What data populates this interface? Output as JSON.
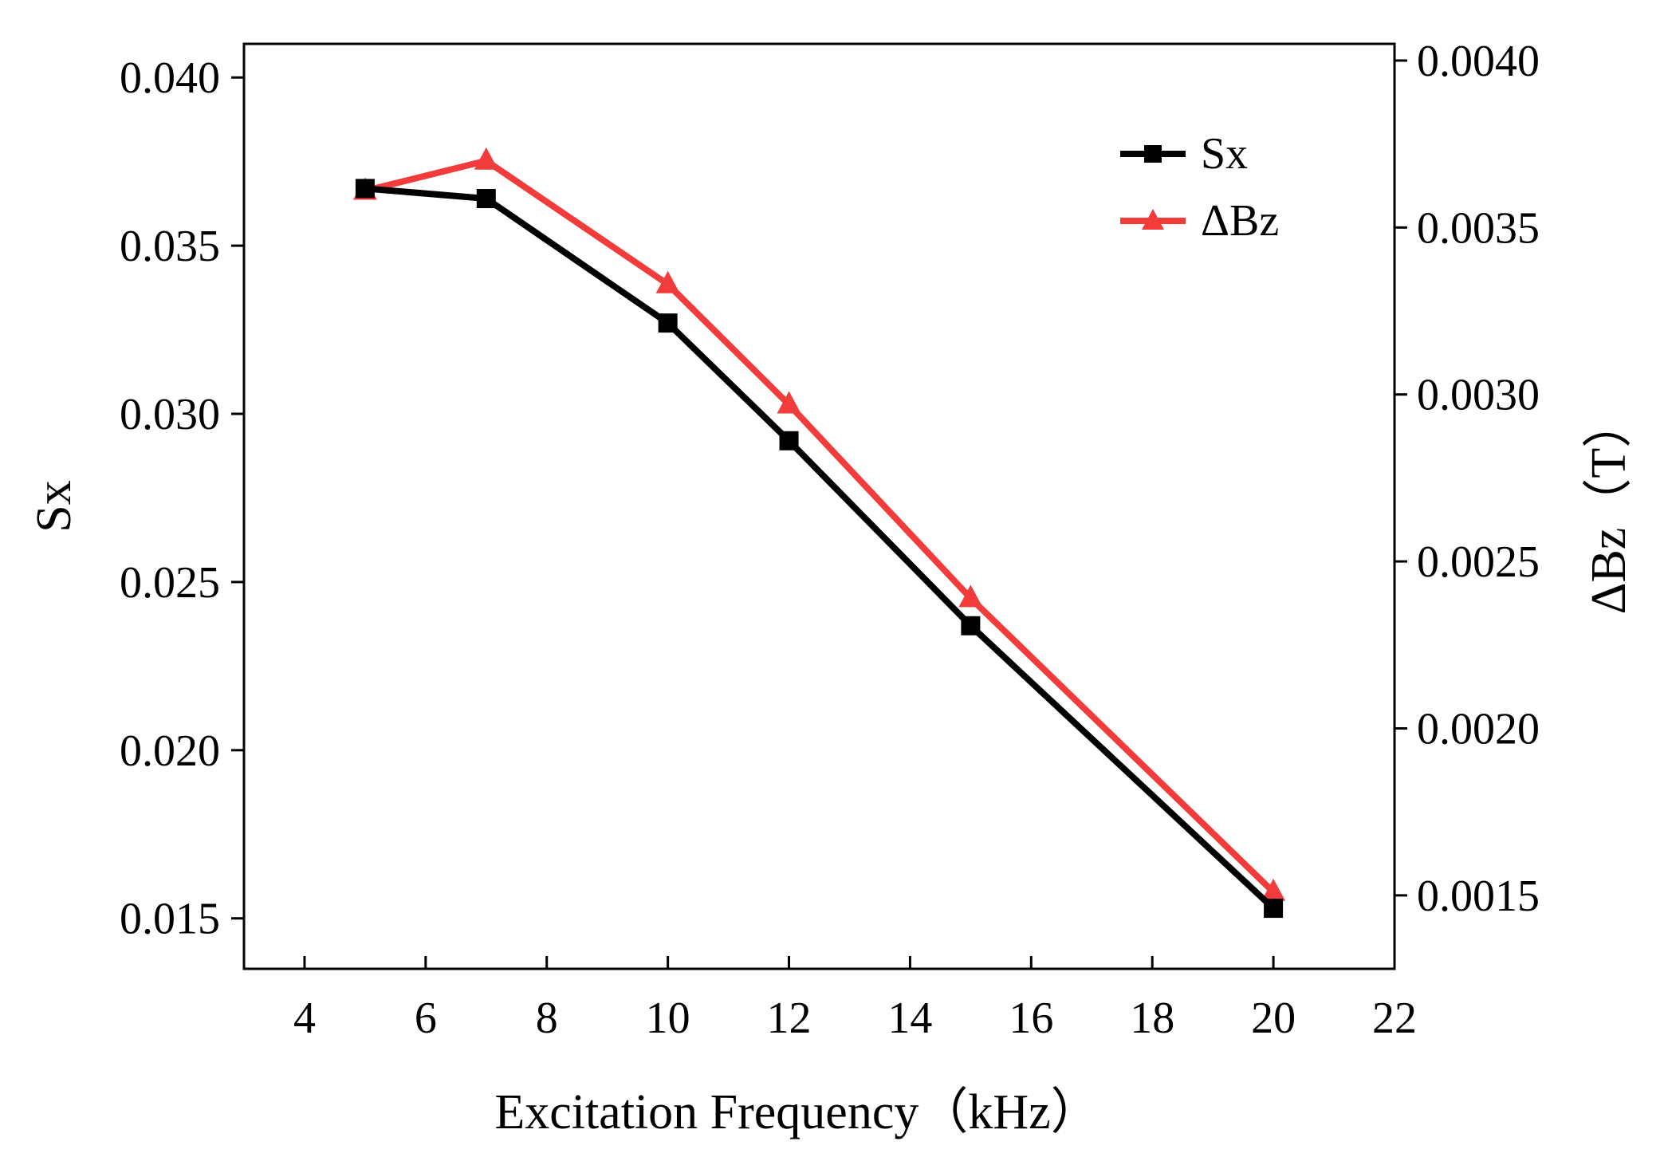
{
  "chart_data": {
    "type": "line",
    "title": "",
    "xlabel": "Excitation Frequency（kHz）",
    "ylabel": "Sx",
    "y2label": "ΔBz（T）",
    "x": [
      5,
      7,
      10,
      12,
      15,
      20
    ],
    "xlim": [
      3,
      22
    ],
    "ylim": [
      0.0135,
      0.041
    ],
    "y2lim": [
      0.00128,
      0.00405
    ],
    "xticks": [
      "4",
      "6",
      "8",
      "10",
      "12",
      "14",
      "16",
      "18",
      "20",
      "22"
    ],
    "yticks": [
      "0.015",
      "0.020",
      "0.025",
      "0.030",
      "0.035",
      "0.040"
    ],
    "y2ticks": [
      "0.0015",
      "0.0020",
      "0.0025",
      "0.0030",
      "0.0035",
      "0.0040"
    ],
    "grid": false,
    "legend_position": "top-right",
    "series": [
      {
        "name": "Sx",
        "axis": "left",
        "marker": "square",
        "color": "#000000",
        "values": [
          0.0367,
          0.0364,
          0.0327,
          0.0292,
          0.0237,
          0.0153
        ]
      },
      {
        "name": "ΔBz",
        "axis": "right",
        "marker": "triangle",
        "color": "#f23b3b",
        "values": [
          0.00361,
          0.0037,
          0.00333,
          0.00297,
          0.00239,
          0.00151
        ]
      }
    ]
  }
}
